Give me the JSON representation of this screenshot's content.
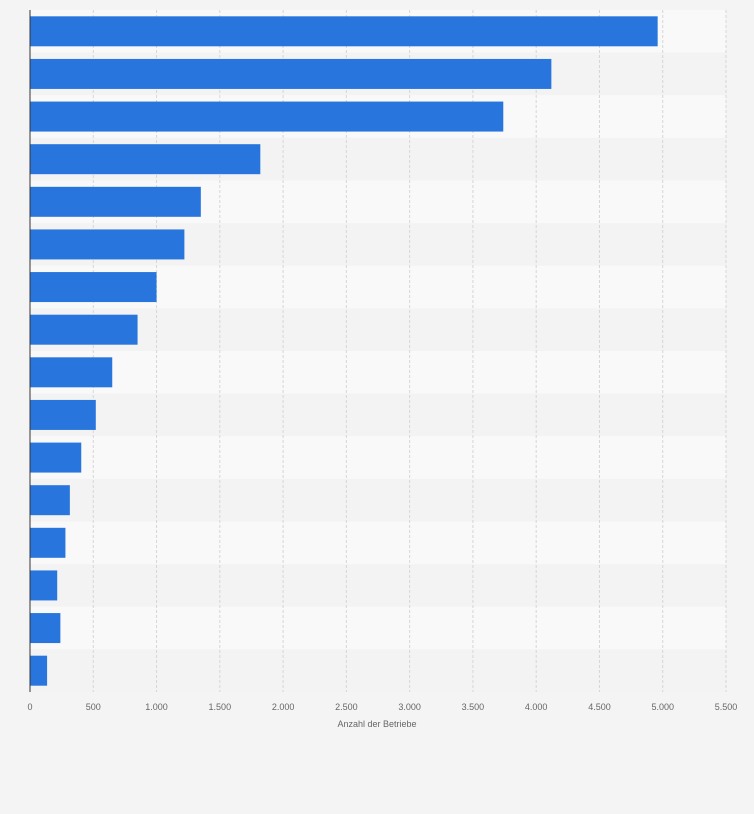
{
  "chart_data": {
    "type": "bar",
    "orientation": "horizontal",
    "categories": [
      "",
      "",
      "",
      "",
      "",
      "",
      "",
      "",
      "",
      "",
      "",
      "",
      "",
      "",
      "",
      ""
    ],
    "values": [
      4960,
      4120,
      3740,
      1820,
      1350,
      1220,
      1000,
      850,
      650,
      520,
      405,
      315,
      280,
      215,
      240,
      135
    ],
    "xlabel": "Anzahl der Betriebe",
    "ylabel": "",
    "xlim": [
      0,
      5500
    ],
    "xticks": [
      0,
      500,
      1000,
      1500,
      2000,
      2500,
      3000,
      3500,
      4000,
      4500,
      5000,
      5500
    ],
    "xtick_labels": [
      "0",
      "500",
      "1.000",
      "1.500",
      "2.000",
      "2.500",
      "3.000",
      "3.500",
      "4.000",
      "4.500",
      "5.000",
      "5.500"
    ],
    "grid": true,
    "legend": "none",
    "colors": {
      "bar": "#2876dd",
      "band_light": "#f9f9f9",
      "band_dark": "#f3f3f3",
      "grid": "#d6d6d6",
      "axis": "#333333",
      "tick_text": "#666666"
    }
  }
}
